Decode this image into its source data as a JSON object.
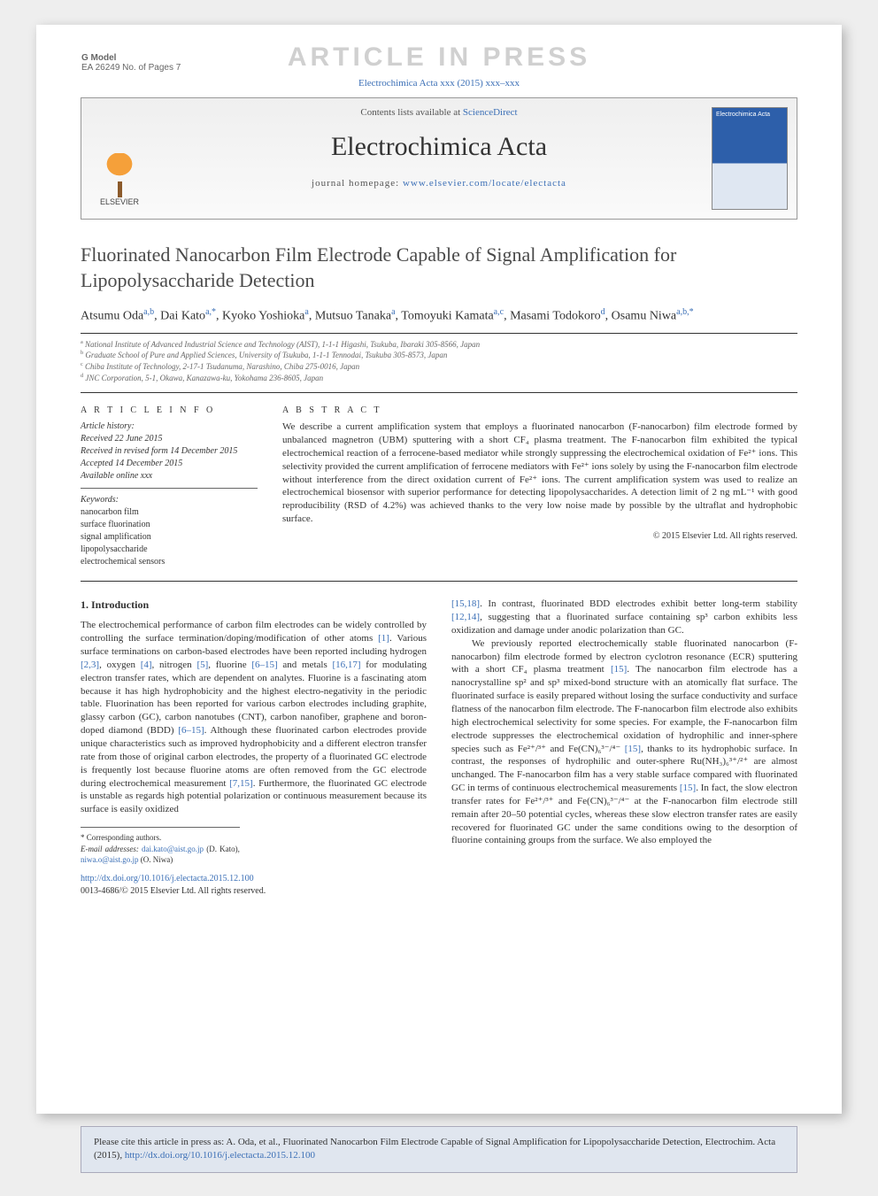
{
  "gmodel": {
    "label": "G Model",
    "code": "EA 26249 No. of Pages 7"
  },
  "watermark": "ARTICLE IN PRESS",
  "citeline": "Electrochimica Acta xxx (2015) xxx–xxx",
  "banner": {
    "contents_line_pre": "Contents lists available at ",
    "contents_link": "ScienceDirect",
    "journal_title": "Electrochimica Acta",
    "homepage_pre": "journal homepage: ",
    "homepage_url": "www.elsevier.com/locate/electacta",
    "publisher": "ELSEVIER",
    "cover_text": "Electrochimica Acta"
  },
  "title": "Fluorinated Nanocarbon Film Electrode Capable of Signal Amplification for Lipopolysaccharide Detection",
  "authors": [
    {
      "name": "Atsumu Oda",
      "sup": "a,b"
    },
    {
      "name": "Dai Kato",
      "sup": "a,*"
    },
    {
      "name": "Kyoko Yoshioka",
      "sup": "a"
    },
    {
      "name": "Mutsuo Tanaka",
      "sup": "a"
    },
    {
      "name": "Tomoyuki Kamata",
      "sup": "a,c"
    },
    {
      "name": "Masami Todokoro",
      "sup": "d"
    },
    {
      "name": "Osamu Niwa",
      "sup": "a,b,*"
    }
  ],
  "affiliations": [
    {
      "sup": "a",
      "text": "National Institute of Advanced Industrial Science and Technology (AIST), 1-1-1 Higashi, Tsukuba, Ibaraki 305-8566, Japan"
    },
    {
      "sup": "b",
      "text": "Graduate School of Pure and Applied Sciences, University of Tsukuba, 1-1-1 Tennodai, Tsukuba 305-8573, Japan"
    },
    {
      "sup": "c",
      "text": "Chiba Institute of Technology, 2-17-1 Tsudanuma, Narashino, Chiba 275-0016, Japan"
    },
    {
      "sup": "d",
      "text": "JNC Corporation, 5-1, Okawa, Kanazawa-ku, Yokohama 236-8605, Japan"
    }
  ],
  "info": {
    "heading": "A R T I C L E   I N F O",
    "history_label": "Article history:",
    "history": [
      "Received 22 June 2015",
      "Received in revised form 14 December 2015",
      "Accepted 14 December 2015",
      "Available online xxx"
    ],
    "keywords_label": "Keywords:",
    "keywords": [
      "nanocarbon film",
      "surface fluorination",
      "signal amplification",
      "lipopolysaccharide",
      "electrochemical sensors"
    ]
  },
  "abstract": {
    "heading": "A B S T R A C T",
    "text": "We describe a current amplification system that employs a fluorinated nanocarbon (F-nanocarbon) film electrode formed by unbalanced magnetron (UBM) sputtering with a short CF₄ plasma treatment. The F-nanocarbon film exhibited the typical electrochemical reaction of a ferrocene-based mediator while strongly suppressing the electrochemical oxidation of Fe²⁺ ions. This selectivity provided the current amplification of ferrocene mediators with Fe²⁺ ions solely by using the F-nanocarbon film electrode without interference from the direct oxidation current of Fe²⁺ ions. The current amplification system was used to realize an electrochemical biosensor with superior performance for detecting lipopolysaccharides. A detection limit of 2 ng mL⁻¹ with good reproducibility (RSD of 4.2%) was achieved thanks to the very low noise made by possible by the ultraflat and hydrophobic surface.",
    "copyright": "© 2015 Elsevier Ltd. All rights reserved."
  },
  "body": {
    "section_heading": "1. Introduction",
    "col1": "The electrochemical performance of carbon film electrodes can be widely controlled by controlling the surface termination/doping/modification of other atoms [1]. Various surface terminations on carbon-based electrodes have been reported including hydrogen [2,3], oxygen [4], nitrogen [5], fluorine [6–15] and metals [16,17] for modulating electron transfer rates, which are dependent on analytes. Fluorine is a fascinating atom because it has high hydrophobicity and the highest electro-negativity in the periodic table. Fluorination has been reported for various carbon electrodes including graphite, glassy carbon (GC), carbon nanotubes (CNT), carbon nanofiber, graphene and boron-doped diamond (BDD) [6–15]. Although these fluorinated carbon electrodes provide unique characteristics such as improved hydrophobicity and a different electron transfer rate from those of original carbon electrodes, the property of a fluorinated GC electrode is frequently lost because fluorine atoms are often removed from the GC electrode during electrochemical measurement [7,15]. Furthermore, the fluorinated GC electrode is unstable as regards high potential polarization or continuous measurement because its surface is easily oxidized",
    "col2": "[15,18]. In contrast, fluorinated BDD electrodes exhibit better long-term stability [12,14], suggesting that a fluorinated surface containing sp³ carbon exhibits less oxidization and damage under anodic polarization than GC.\n\nWe previously reported electrochemically stable fluorinated nanocarbon (F-nanocarbon) film electrode formed by electron cyclotron resonance (ECR) sputtering with a short CF₄ plasma treatment [15]. The nanocarbon film electrode has a nanocrystalline sp² and sp³ mixed-bond structure with an atomically flat surface. The fluorinated surface is easily prepared without losing the surface conductivity and surface flatness of the nanocarbon film electrode. The F-nanocarbon film electrode also exhibits high electrochemical selectivity for some species. For example, the F-nanocarbon film electrode suppresses the electrochemical oxidation of hydrophilic and inner-sphere species such as Fe²⁺/³⁺ and Fe(CN)₆³⁻/⁴⁻ [15], thanks to its hydrophobic surface. In contrast, the responses of hydrophilic and outer-sphere Ru(NH₃)₆³⁺/²⁺ are almost unchanged. The F-nanocarbon film has a very stable surface compared with fluorinated GC in terms of continuous electrochemical measurements [15]. In fact, the slow electron transfer rates for Fe²⁺/³⁺ and Fe(CN)₆³⁻/⁴⁻ at the F-nanocarbon film electrode still remain after 20–50 potential cycles, whereas these slow electron transfer rates are easily recovered for fluorinated GC under the same conditions owing to the desorption of fluorine containing groups from the surface. We also employed the"
  },
  "footnotes": {
    "corr": "* Corresponding authors.",
    "email_label": "E-mail addresses:",
    "emails": [
      {
        "addr": "dai.kato@aist.go.jp",
        "who": "(D. Kato)"
      },
      {
        "addr": "niwa.o@aist.go.jp",
        "who": "(O. Niwa)"
      }
    ]
  },
  "doi": {
    "url": "http://dx.doi.org/10.1016/j.electacta.2015.12.100",
    "issn_line": "0013-4686/© 2015 Elsevier Ltd. All rights reserved."
  },
  "press_cite": {
    "pre": "Please cite this article in press as: A. Oda, et al., Fluorinated Nanocarbon Film Electrode Capable of Signal Amplification for Lipopolysaccharide Detection, Electrochim. Acta (2015), ",
    "url": "http://dx.doi.org/10.1016/j.electacta.2015.12.100"
  },
  "colors": {
    "link": "#3b6fb6",
    "page_bg": "#ffffff",
    "body_bg": "#eeeeee",
    "cite_box_bg": "#e0e6ef"
  }
}
